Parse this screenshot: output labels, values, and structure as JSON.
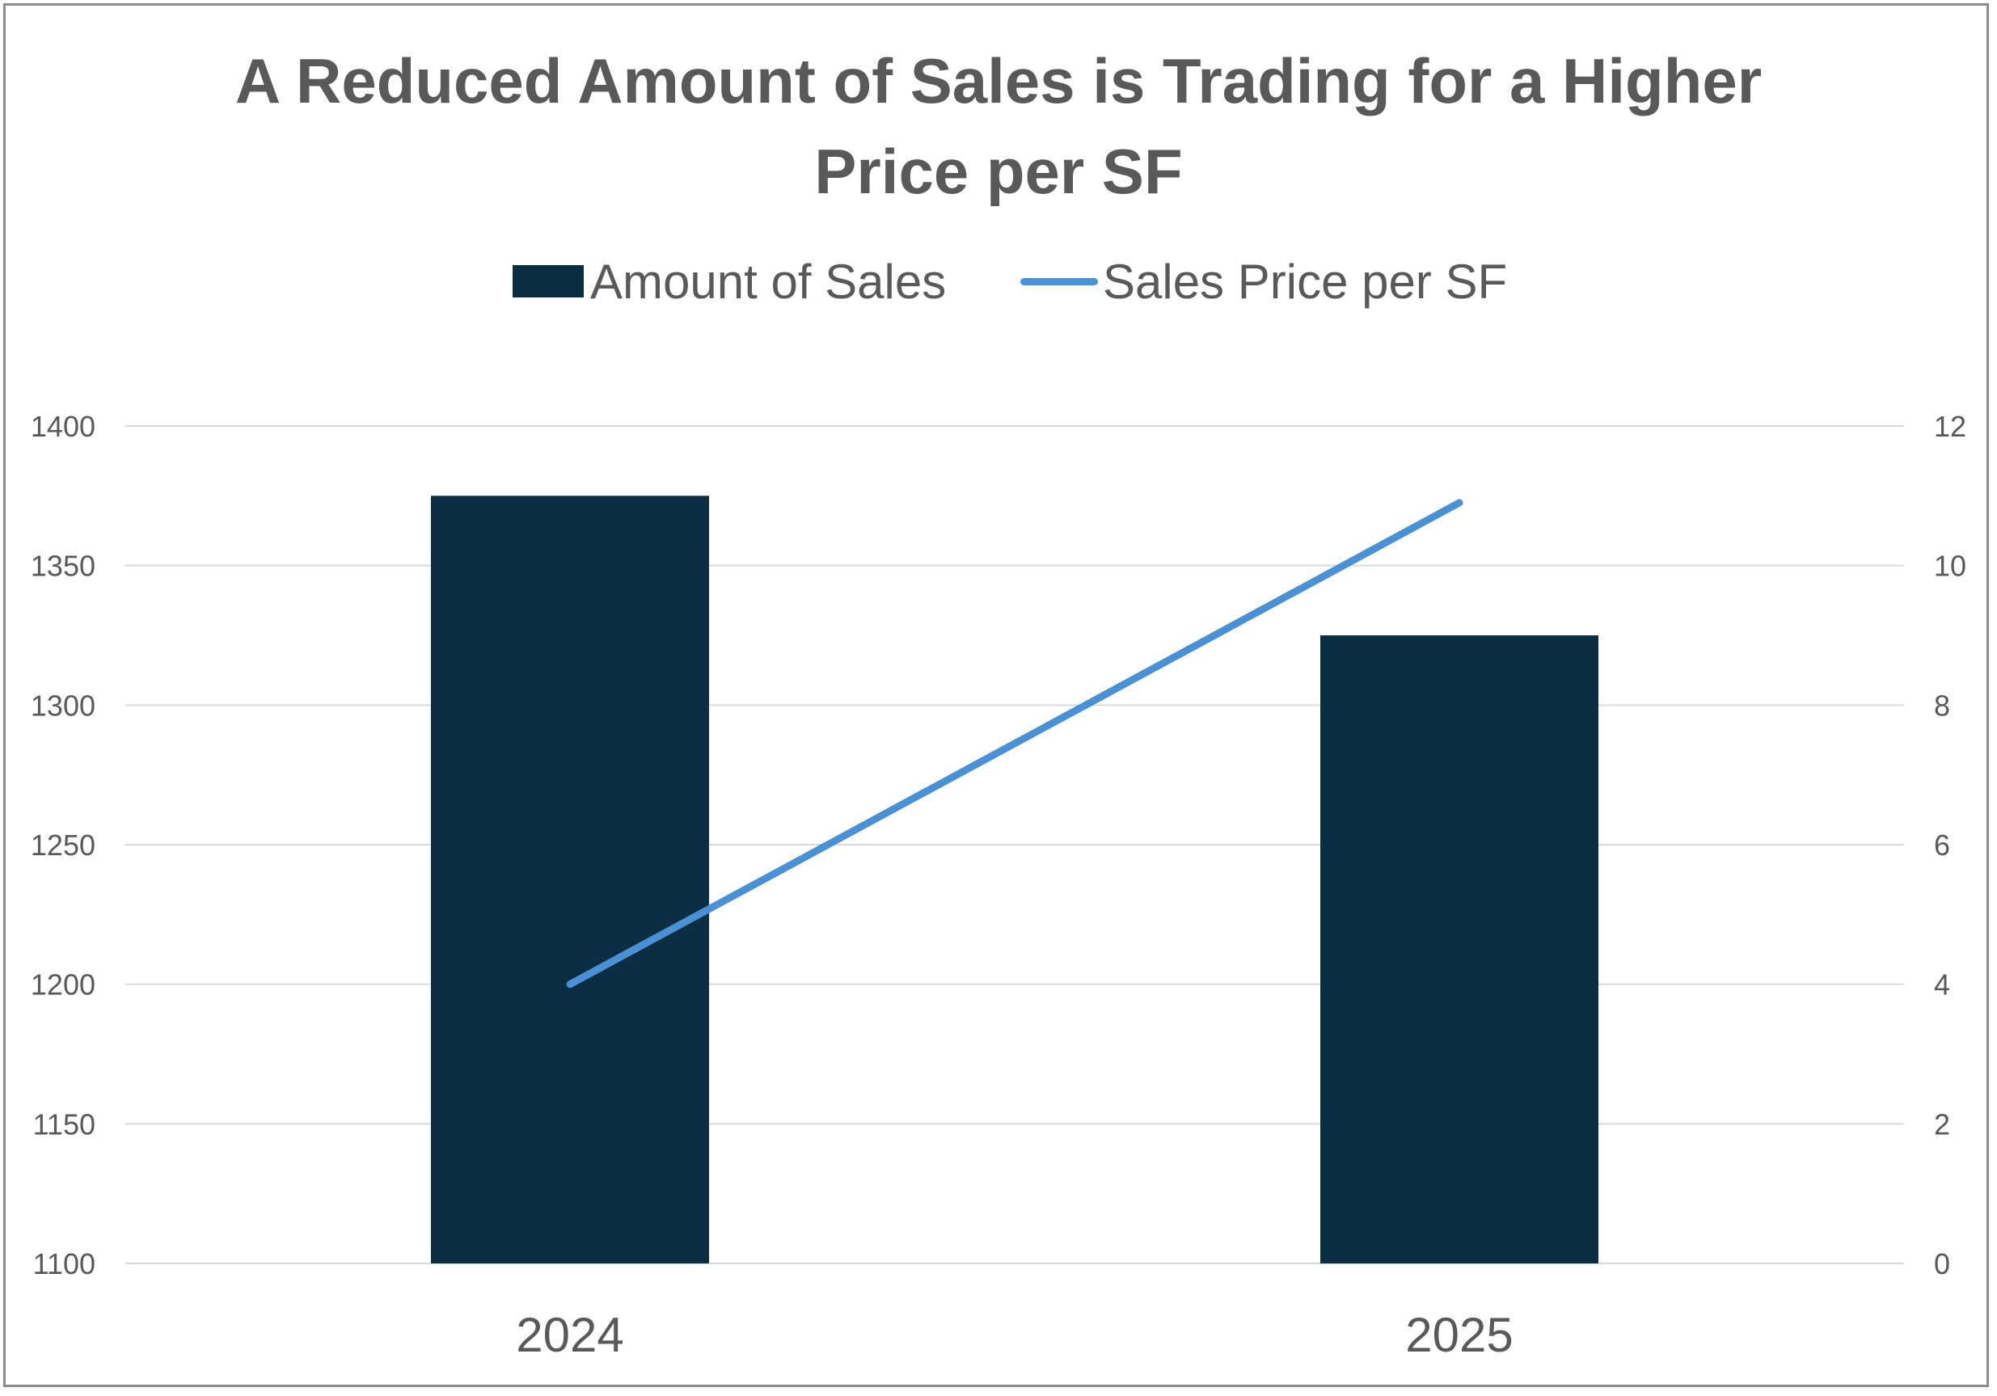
{
  "chart_data": {
    "type": "bar",
    "title": "A Reduced Amount of Sales is Trading for a Higher Price per SF",
    "title_lines": [
      "A Reduced Amount of Sales is Trading for a Higher",
      "Price per SF"
    ],
    "categories": [
      "2024",
      "2025"
    ],
    "series": [
      {
        "name": "Amount of Sales",
        "type": "bar",
        "axis": "left",
        "values": [
          1375,
          1325
        ],
        "color": "#0b2e42"
      },
      {
        "name": "Sales Price per SF",
        "type": "line",
        "axis": "right",
        "values": [
          4,
          10.9
        ],
        "color": "#4a90d4"
      }
    ],
    "left_axis": {
      "min": 1100,
      "max": 1400,
      "ticks": [
        "1100",
        "1150",
        "1200",
        "1250",
        "1300",
        "1350",
        "1400"
      ]
    },
    "right_axis": {
      "min": 0,
      "max": 12,
      "ticks": [
        "0",
        "2",
        "4",
        "6",
        "8",
        "10",
        "12"
      ]
    },
    "legend_position": "top",
    "grid": true,
    "gridline_color": "#d9d9d9"
  }
}
